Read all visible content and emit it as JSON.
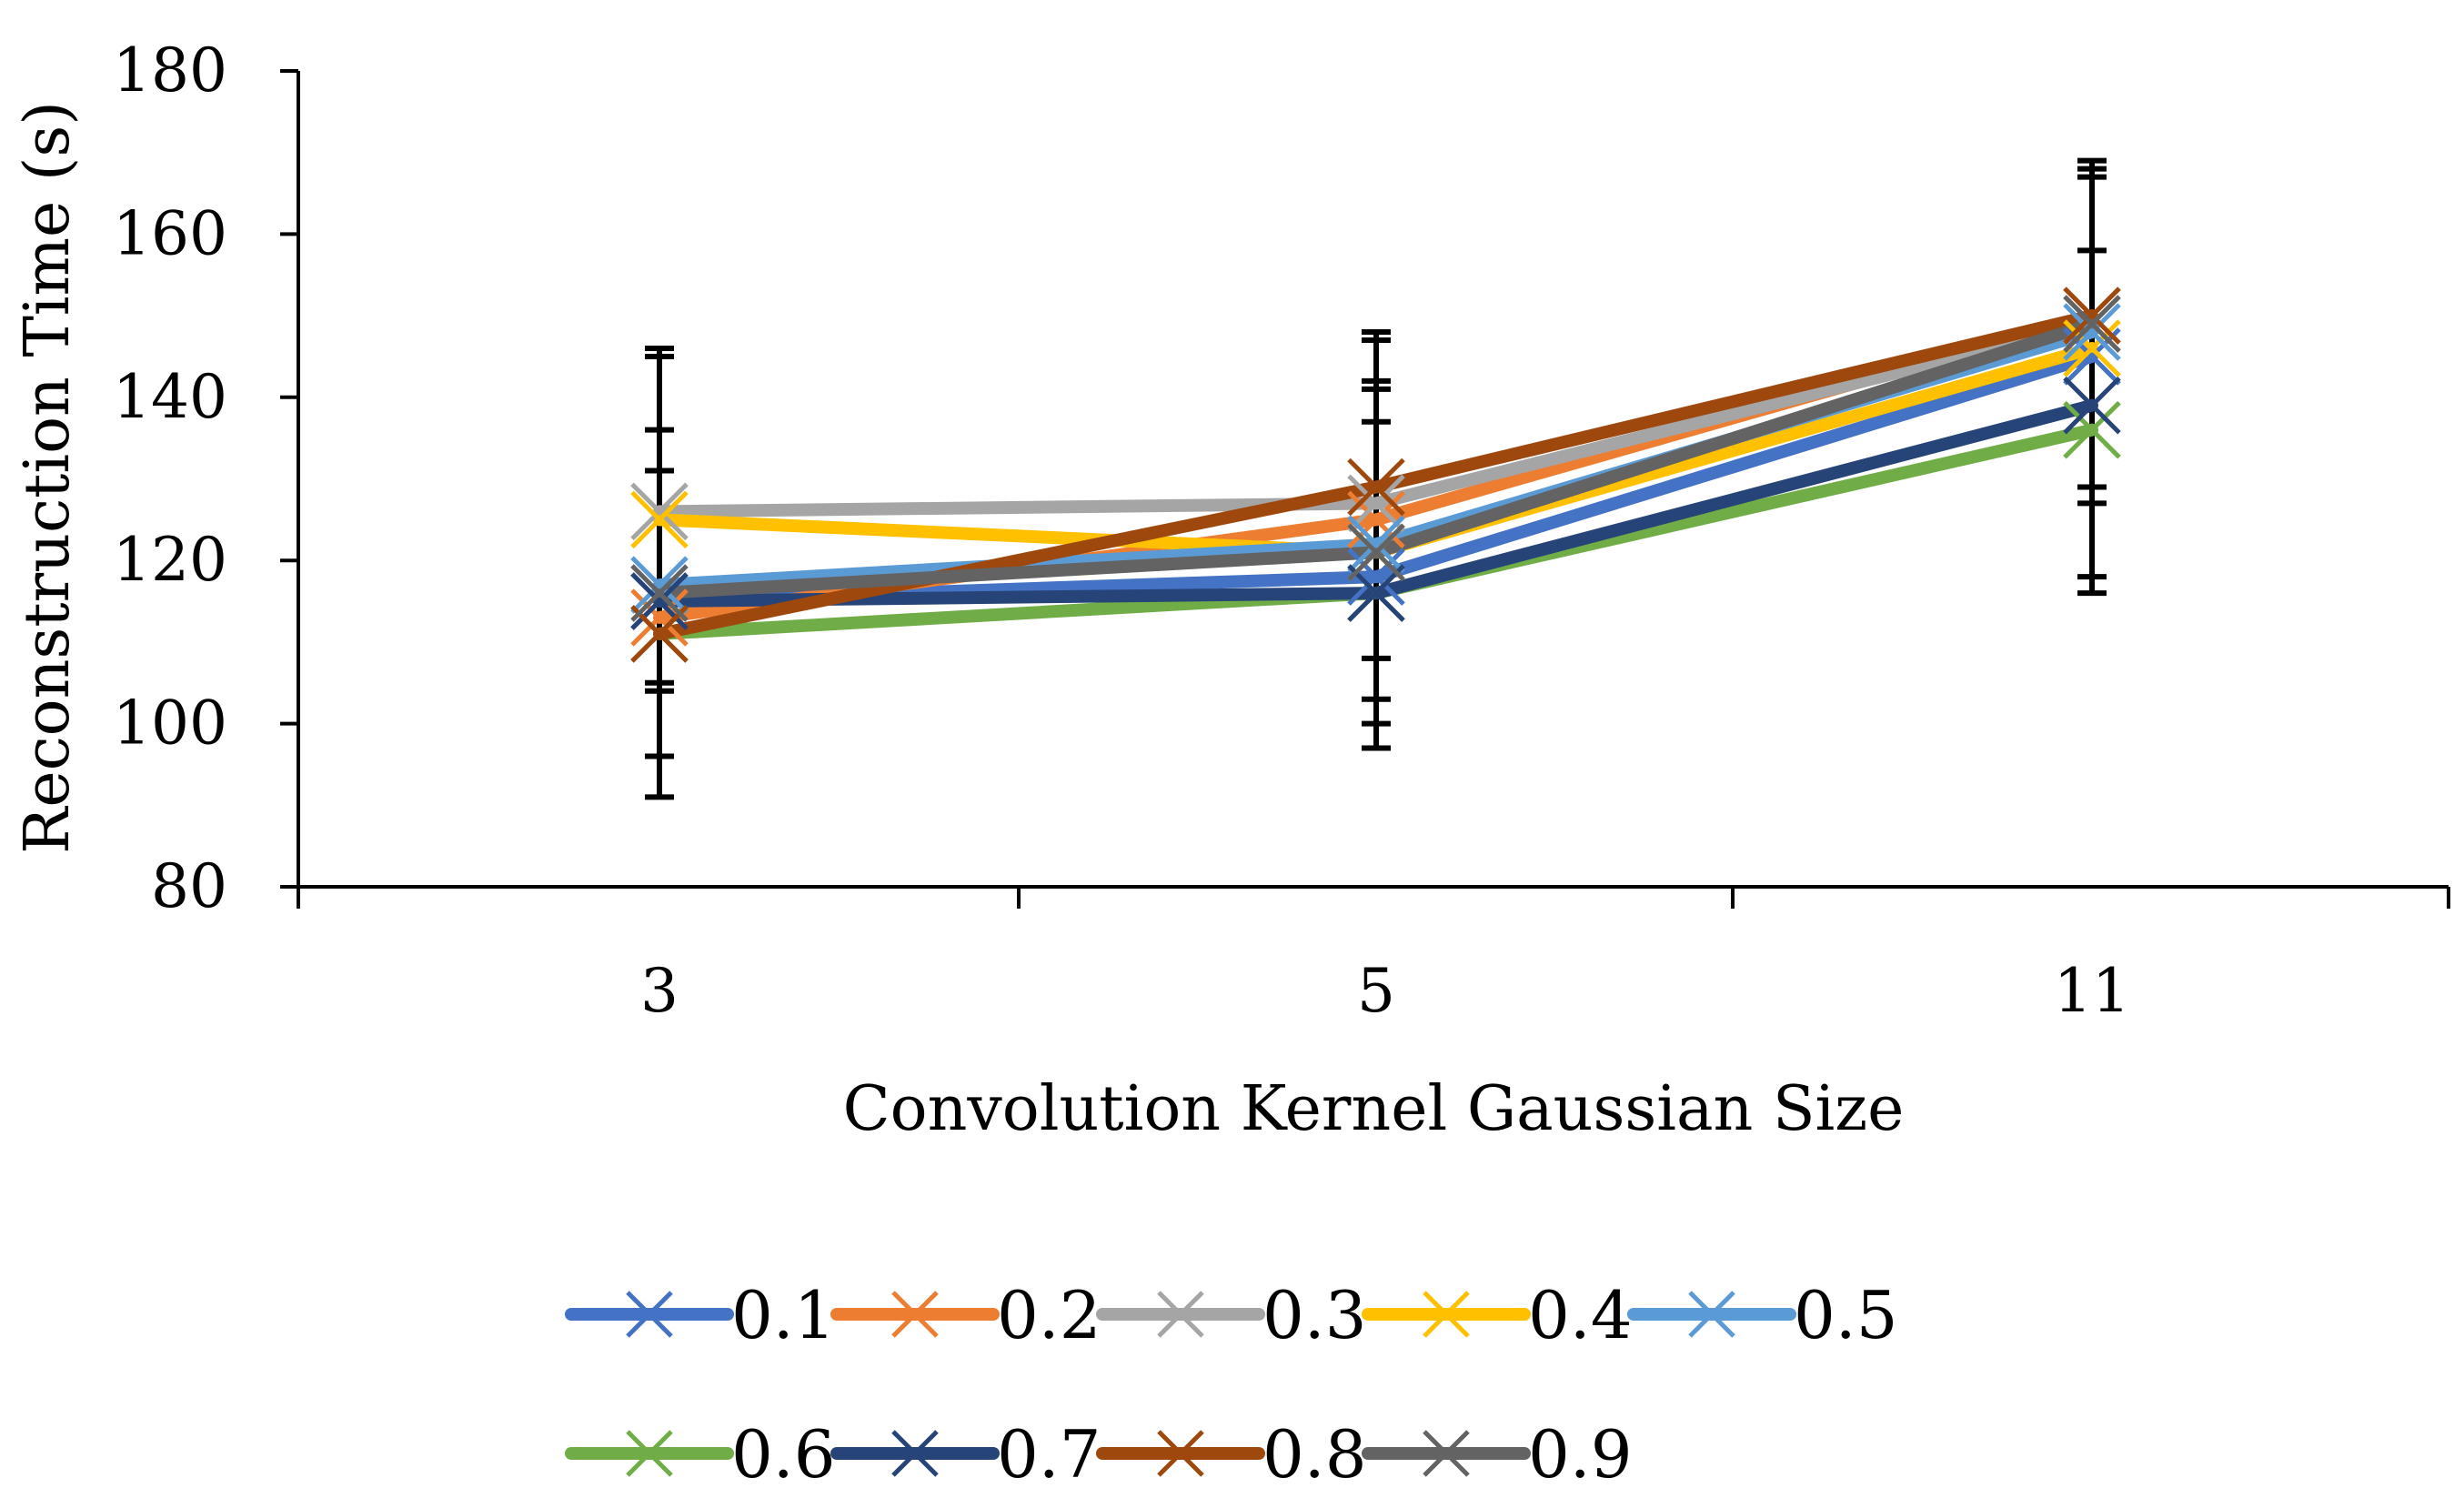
{
  "chart_data": {
    "type": "line",
    "title": "",
    "xlabel": "Convolution Kernel Gaussian Size",
    "ylabel": "Reconstruction Time (s)",
    "categories": [
      "3",
      "5",
      "11"
    ],
    "ylim": [
      80,
      180
    ],
    "yticks": [
      "80",
      "100",
      "120",
      "140",
      "160",
      "180"
    ],
    "grid": false,
    "legend_position": "bottom",
    "marker": "x",
    "series": [
      {
        "name": "0.1",
        "color": "#4472C4",
        "values": [
          115,
          118,
          145
        ]
      },
      {
        "name": "0.2",
        "color": "#ED7D31",
        "values": [
          113,
          125,
          150
        ]
      },
      {
        "name": "0.3",
        "color": "#A5A5A5",
        "values": [
          126,
          127,
          149
        ]
      },
      {
        "name": "0.4",
        "color": "#FFC000",
        "values": [
          125,
          121,
          146
        ]
      },
      {
        "name": "0.5",
        "color": "#5B9BD5",
        "values": [
          117,
          122,
          148
        ]
      },
      {
        "name": "0.6",
        "color": "#70AD47",
        "values": [
          111,
          116,
          136
        ]
      },
      {
        "name": "0.7",
        "color": "#264478",
        "values": [
          115,
          116,
          139
        ]
      },
      {
        "name": "0.8",
        "color": "#9E480E",
        "values": [
          111,
          129,
          150
        ]
      },
      {
        "name": "0.9",
        "color": "#636363",
        "values": [
          116,
          121,
          149
        ]
      }
    ],
    "error_bars": {
      "color": "#000000",
      "per_category": [
        [
          [
            91,
            136
          ],
          [
            96,
            146
          ],
          [
            105,
            131
          ],
          [
            104,
            145
          ]
        ],
        [
          [
            97,
            137
          ],
          [
            100,
            141
          ],
          [
            103,
            148
          ],
          [
            97,
            147
          ],
          [
            108,
            142
          ]
        ],
        [
          [
            116,
            158
          ],
          [
            118,
            168
          ],
          [
            127,
            169
          ],
          [
            129,
            167
          ]
        ]
      ]
    }
  }
}
